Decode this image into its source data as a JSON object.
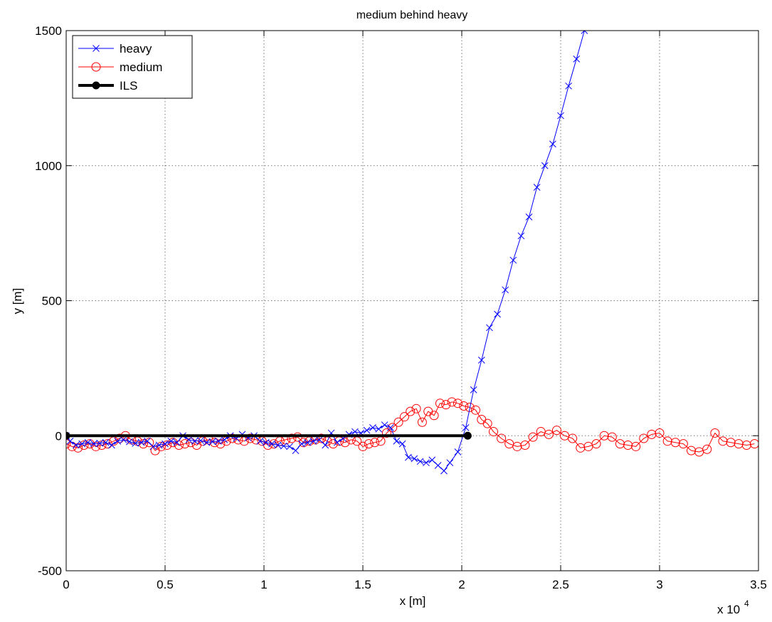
{
  "chart_data": {
    "type": "line",
    "title": "medium behind heavy",
    "xlabel": "x [m]",
    "ylabel": "y [m]",
    "x_multiplier_label": "x 10",
    "x_multiplier_exponent": "4",
    "xlim": [
      0,
      3.5
    ],
    "ylim": [
      -500,
      1500
    ],
    "x_scale_factor": 10000,
    "xticks": [
      0,
      0.5,
      1,
      1.5,
      2,
      2.5,
      3,
      3.5
    ],
    "xtick_labels": [
      "0",
      "0.5",
      "1",
      "1.5",
      "2",
      "2.5",
      "3",
      "3.5"
    ],
    "yticks": [
      -500,
      0,
      500,
      1000,
      1500
    ],
    "ytick_labels": [
      "-500",
      "0",
      "500",
      "1000",
      "1500"
    ],
    "grid": true,
    "legend_position": "top-left",
    "series": [
      {
        "name": "heavy",
        "color": "#0000ff",
        "marker": "x",
        "linewidth": 1,
        "x": [
          0.0,
          0.02,
          0.05,
          0.08,
          0.11,
          0.14,
          0.17,
          0.2,
          0.23,
          0.26,
          0.29,
          0.32,
          0.35,
          0.38,
          0.41,
          0.44,
          0.47,
          0.5,
          0.53,
          0.56,
          0.59,
          0.62,
          0.65,
          0.68,
          0.71,
          0.74,
          0.77,
          0.8,
          0.83,
          0.86,
          0.89,
          0.92,
          0.95,
          0.98,
          1.01,
          1.04,
          1.07,
          1.1,
          1.13,
          1.16,
          1.19,
          1.22,
          1.25,
          1.28,
          1.31,
          1.34,
          1.37,
          1.4,
          1.43,
          1.46,
          1.49,
          1.52,
          1.55,
          1.58,
          1.61,
          1.64,
          1.67,
          1.7,
          1.73,
          1.76,
          1.79,
          1.82,
          1.85,
          1.88,
          1.91,
          1.94,
          1.98,
          2.02,
          2.06,
          2.1,
          2.14,
          2.18,
          2.22,
          2.26,
          2.3,
          2.34,
          2.38,
          2.42,
          2.46,
          2.5,
          2.54,
          2.58,
          2.62,
          2.66
        ],
        "y": [
          0,
          -20,
          -35,
          -30,
          -25,
          -30,
          -28,
          -25,
          -35,
          -20,
          -15,
          -22,
          -28,
          -25,
          -20,
          -40,
          -35,
          -30,
          -20,
          -25,
          0,
          -15,
          -20,
          -18,
          -25,
          -22,
          -20,
          -15,
          0,
          -10,
          5,
          -8,
          0,
          -20,
          -25,
          -30,
          -35,
          -38,
          -40,
          -55,
          -30,
          -25,
          -20,
          -15,
          -35,
          10,
          -25,
          -10,
          5,
          15,
          10,
          20,
          30,
          25,
          40,
          30,
          -20,
          -30,
          -80,
          -85,
          -95,
          -100,
          -90,
          -110,
          -130,
          -100,
          -60,
          30,
          170,
          280,
          400,
          450,
          540,
          650,
          740,
          810,
          920,
          1000,
          1080,
          1185,
          1295,
          1395,
          1500,
          1620
        ]
      },
      {
        "name": "medium",
        "color": "#ff0000",
        "marker": "o",
        "linewidth": 1,
        "x": [
          0.0,
          0.03,
          0.06,
          0.09,
          0.12,
          0.15,
          0.18,
          0.21,
          0.24,
          0.27,
          0.3,
          0.33,
          0.36,
          0.39,
          0.42,
          0.45,
          0.48,
          0.51,
          0.54,
          0.57,
          0.6,
          0.63,
          0.66,
          0.69,
          0.72,
          0.75,
          0.78,
          0.81,
          0.84,
          0.87,
          0.9,
          0.93,
          0.96,
          0.99,
          1.02,
          1.05,
          1.08,
          1.11,
          1.14,
          1.17,
          1.2,
          1.23,
          1.26,
          1.29,
          1.32,
          1.35,
          1.38,
          1.41,
          1.44,
          1.47,
          1.5,
          1.53,
          1.56,
          1.59,
          1.62,
          1.65,
          1.68,
          1.71,
          1.74,
          1.77,
          1.8,
          1.83,
          1.86,
          1.89,
          1.92,
          1.95,
          1.98,
          2.01,
          2.04,
          2.07,
          2.1,
          2.13,
          2.16,
          2.2,
          2.24,
          2.28,
          2.32,
          2.36,
          2.4,
          2.44,
          2.48,
          2.52,
          2.56,
          2.6,
          2.64,
          2.68,
          2.72,
          2.76,
          2.8,
          2.84,
          2.88,
          2.92,
          2.96,
          3.0,
          3.04,
          3.08,
          3.12,
          3.16,
          3.2,
          3.24,
          3.28,
          3.32,
          3.36,
          3.4,
          3.44,
          3.48
        ],
        "y": [
          -30,
          -40,
          -45,
          -35,
          -30,
          -40,
          -35,
          -30,
          -20,
          -10,
          0,
          -15,
          -20,
          -30,
          -25,
          -55,
          -40,
          -35,
          -25,
          -35,
          -30,
          -25,
          -35,
          -20,
          -15,
          -25,
          -30,
          -20,
          -10,
          -15,
          -20,
          -10,
          -15,
          -20,
          -35,
          -30,
          -20,
          -15,
          -10,
          -5,
          -25,
          -20,
          -15,
          -10,
          -20,
          -30,
          -20,
          -25,
          -15,
          -20,
          -40,
          -30,
          -25,
          -20,
          10,
          30,
          50,
          70,
          90,
          100,
          50,
          90,
          75,
          120,
          115,
          125,
          120,
          110,
          105,
          95,
          60,
          45,
          15,
          -10,
          -30,
          -40,
          -35,
          -5,
          15,
          5,
          20,
          0,
          -10,
          -45,
          -40,
          -30,
          0,
          -5,
          -30,
          -35,
          -40,
          -10,
          5,
          10,
          -20,
          -25,
          -30,
          -55,
          -60,
          -50,
          10,
          -20,
          -25,
          -30,
          -35,
          -30
        ]
      },
      {
        "name": "ILS",
        "color": "#000000",
        "marker": "o",
        "linewidth": 4,
        "x": [
          0,
          2.03
        ],
        "y": [
          0,
          0
        ]
      }
    ]
  }
}
